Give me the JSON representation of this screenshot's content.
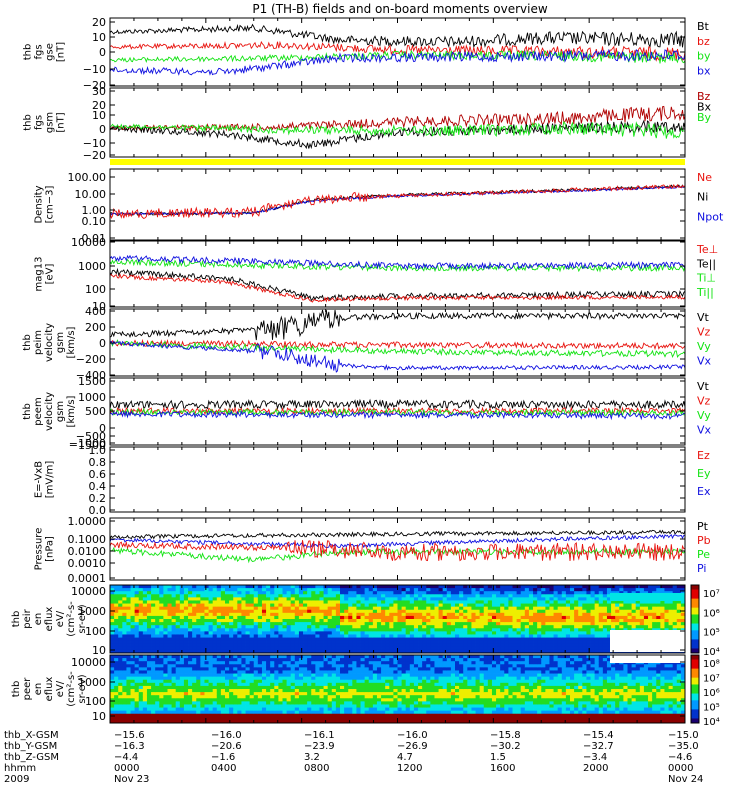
{
  "title": "P1 (TH-B) fields and on-board moments overview",
  "colors": {
    "black": "#000000",
    "red": "#e8130e",
    "green": "#13e313",
    "blue": "#1010e0",
    "darkred": "#b00000",
    "yellow": "#ffff00"
  },
  "panels": [
    {
      "key": "fgs_gse",
      "ylabel": [
        "thb",
        "fgs",
        "gse",
        "[nT]"
      ],
      "ticks": [
        "20",
        "10",
        "0",
        "−10",
        "−20"
      ],
      "legend": [
        {
          "t": "Bt",
          "c": "black"
        },
        {
          "t": "bz",
          "c": "red"
        },
        {
          "t": "by",
          "c": "green"
        },
        {
          "t": "bx",
          "c": "blue"
        }
      ]
    },
    {
      "key": "fgs_gsm",
      "ylabel": [
        "thb",
        "fgs",
        "gsm",
        "[nT]"
      ],
      "ticks": [
        "30",
        "20",
        "10",
        "0",
        "−10",
        "−20"
      ],
      "legend": [
        {
          "t": "Bz",
          "c": "darkred"
        },
        {
          "t": "Bx",
          "c": "black"
        },
        {
          "t": "By",
          "c": "green"
        }
      ]
    },
    {
      "key": "density",
      "ylabel": [
        "Density",
        "[cm−3]"
      ],
      "ticks": [
        "100.00",
        "10.00",
        "1.00",
        "0.10",
        "0.01"
      ],
      "legend": [
        {
          "t": "Ne",
          "c": "red"
        },
        {
          "t": "Ni",
          "c": "black"
        },
        {
          "t": "Npot",
          "c": "blue"
        }
      ]
    },
    {
      "key": "temp",
      "ylabel": [
        "mag13",
        "[eV]"
      ],
      "ticks": [
        "10000",
        "1000",
        "100",
        "10"
      ],
      "legend": [
        {
          "t": "Te⊥",
          "c": "red"
        },
        {
          "t": "Te||",
          "c": "black"
        },
        {
          "t": "Ti⊥",
          "c": "green"
        },
        {
          "t": "Ti||",
          "c": "green"
        }
      ]
    },
    {
      "key": "peim",
      "ylabel": [
        "thb",
        "peim",
        "velocity",
        "gsm",
        "[km/s]"
      ],
      "ticks": [
        "400",
        "200",
        "0",
        "−200",
        "−400"
      ],
      "legend": [
        {
          "t": "Vt",
          "c": "black"
        },
        {
          "t": "Vz",
          "c": "red"
        },
        {
          "t": "Vy",
          "c": "green"
        },
        {
          "t": "Vx",
          "c": "blue"
        }
      ]
    },
    {
      "key": "peem",
      "ylabel": [
        "thb",
        "peem",
        "velocity",
        "gsm",
        "[km/s]"
      ],
      "ticks": [
        "1500",
        "1000",
        "500",
        "0",
        "−500",
        "−1000",
        "−1500"
      ],
      "legend": [
        {
          "t": "Vt",
          "c": "black"
        },
        {
          "t": "Vz",
          "c": "red"
        },
        {
          "t": "Vy",
          "c": "green"
        },
        {
          "t": "Vx",
          "c": "blue"
        }
      ]
    },
    {
      "key": "efield",
      "ylabel": [
        "E=-VxB",
        "[mV/m]"
      ],
      "ticks": [
        "1.0",
        "0.8",
        "0.6",
        "0.4",
        "0.2",
        "0.0"
      ],
      "legend": [
        {
          "t": "Ez",
          "c": "red"
        },
        {
          "t": "Ey",
          "c": "green"
        },
        {
          "t": "Ex",
          "c": "blue"
        }
      ]
    },
    {
      "key": "pressure",
      "ylabel": [
        "Pressure",
        "[nPa]"
      ],
      "ticks": [
        "1.0000",
        "0.1000",
        "0.0100",
        "0.0010",
        "0.0001"
      ],
      "legend": [
        {
          "t": "Pt",
          "c": "black"
        },
        {
          "t": "Pb",
          "c": "red"
        },
        {
          "t": "Pe",
          "c": "green"
        },
        {
          "t": "Pi",
          "c": "blue"
        }
      ]
    },
    {
      "key": "peir",
      "ylabel": [
        "thb",
        "peir",
        "en",
        "eflux",
        "eV/",
        "(cm²-s-",
        "sr-eV)"
      ],
      "ticks": [
        "10000",
        "1000",
        "100",
        "10"
      ],
      "cbar": [
        "10⁷",
        "10⁶",
        "10⁵",
        "10⁴"
      ]
    },
    {
      "key": "peer",
      "ylabel": [
        "thb",
        "peer",
        "en",
        "eflux",
        "eV/",
        "(cm²-s-",
        "sr-eV)"
      ],
      "ticks": [
        "10000",
        "1000",
        "100",
        "10"
      ],
      "cbar": [
        "10⁸",
        "10⁷",
        "10⁶",
        "10⁵",
        "10⁴"
      ]
    }
  ],
  "xaxis": {
    "rows": [
      {
        "label": "thb_X-GSM",
        "values": [
          "−15.6",
          "−16.0",
          "−16.1",
          "−16.0",
          "−15.8",
          "−15.4",
          "−15.0"
        ]
      },
      {
        "label": "thb_Y-GSM",
        "values": [
          "−16.3",
          "−20.6",
          "−23.9",
          "−26.9",
          "−30.2",
          "−32.7",
          "−35.0"
        ]
      },
      {
        "label": "thb_Z-GSM",
        "values": [
          "−4.4",
          "−1.6",
          "3.2",
          "4.7",
          "1.5",
          "−3.4",
          "−4.6"
        ]
      },
      {
        "label": "hhmm",
        "values": [
          "0000",
          "0400",
          "0800",
          "1200",
          "1600",
          "2000",
          "0000"
        ]
      },
      {
        "label": "2009",
        "values": [
          "Nov 23",
          "",
          "",
          "",
          "",
          "",
          "Nov 24"
        ]
      }
    ]
  }
}
